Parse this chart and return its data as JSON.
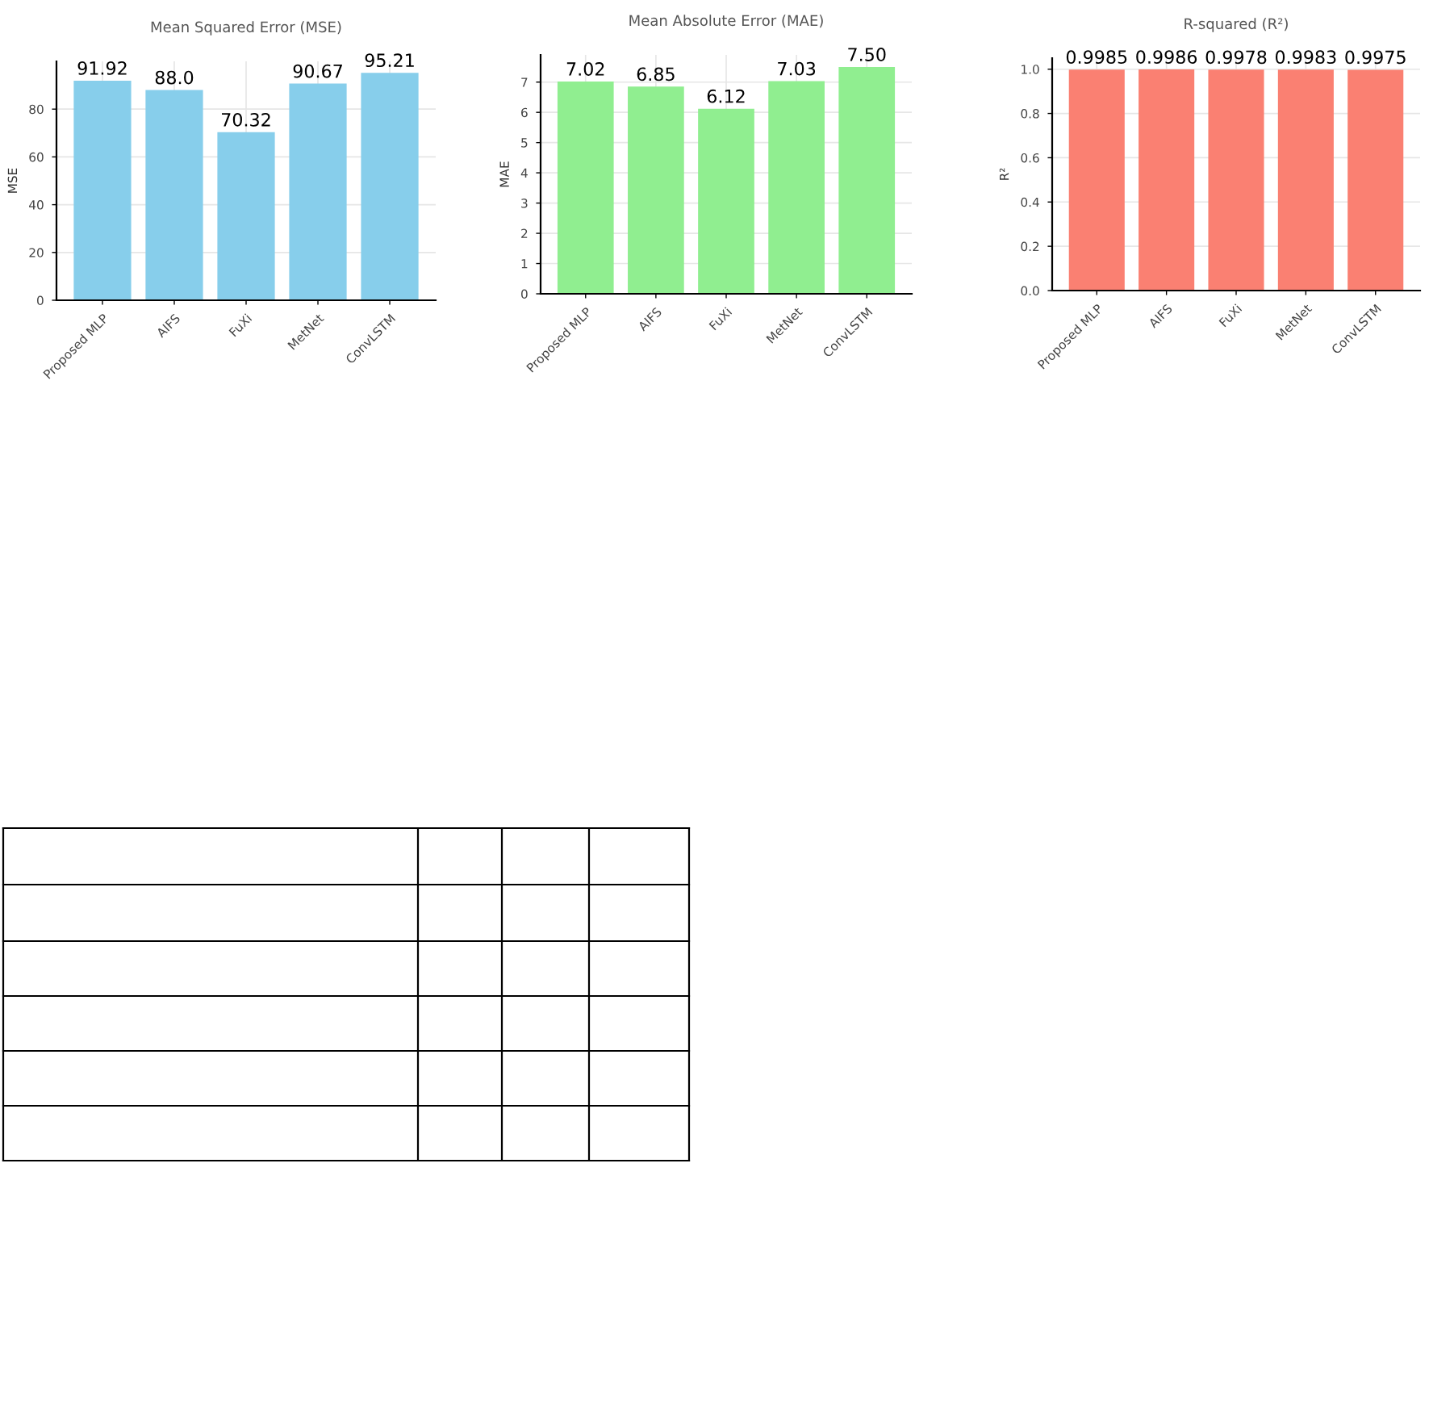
{
  "chart_data": [
    {
      "type": "bar",
      "title": "Mean Squared Error (MSE)",
      "ylabel": "MSE",
      "categories": [
        "Proposed MLP",
        "AIFS",
        "FuXi",
        "MetNet",
        "ConvLSTM"
      ],
      "values": [
        91.92,
        88.0,
        70.32,
        90.67,
        95.21
      ],
      "value_labels": [
        "91.92",
        "88.0",
        "70.32",
        "90.67",
        "95.21"
      ],
      "color": "#87ceeb",
      "ylim": [
        0,
        100
      ],
      "yticks": [
        0,
        20,
        40,
        60,
        80
      ],
      "grid": true
    },
    {
      "type": "bar",
      "title": "Mean Absolute Error (MAE)",
      "ylabel": "MAE",
      "categories": [
        "Proposed MLP",
        "AIFS",
        "FuXi",
        "MetNet",
        "ConvLSTM"
      ],
      "values": [
        7.02,
        6.85,
        6.12,
        7.03,
        7.5
      ],
      "value_labels": [
        "7.02",
        "6.85",
        "6.12",
        "7.03",
        "7.50"
      ],
      "color": "#90ee90",
      "ylim": [
        0,
        7.9
      ],
      "yticks": [
        0,
        1,
        2,
        3,
        4,
        5,
        6,
        7
      ],
      "grid": true
    },
    {
      "type": "bar",
      "title": "R-squared (R²)",
      "ylabel": "R²",
      "categories": [
        "Proposed MLP",
        "AIFS",
        "FuXi",
        "MetNet",
        "ConvLSTM"
      ],
      "values": [
        0.9985,
        0.9986,
        0.9978,
        0.9983,
        0.9975
      ],
      "value_labels": [
        "0.9985",
        "0.9986",
        "0.9978",
        "0.9983",
        "0.9975"
      ],
      "color": "#fa8072",
      "ylim": [
        0,
        1.05
      ],
      "yticks": [
        {
          "value": 0,
          "label": "0.0"
        },
        0.2,
        0.4,
        0.6,
        0.8,
        {
          "value": 1,
          "label": "1.0"
        }
      ],
      "grid": true
    }
  ]
}
